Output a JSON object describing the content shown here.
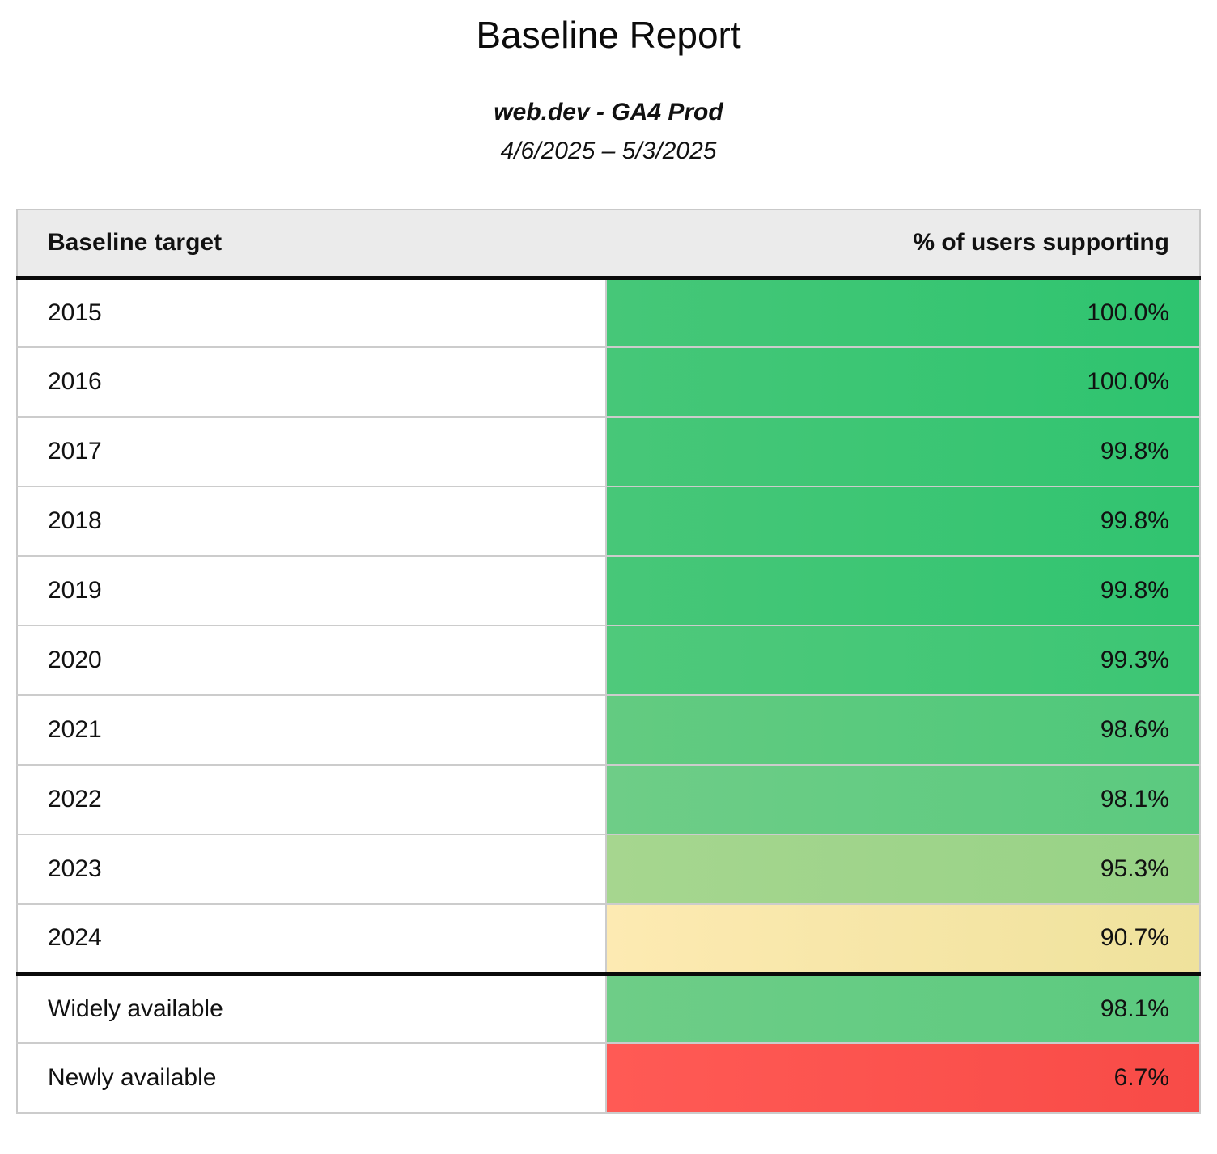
{
  "page": {
    "title": "Baseline Report",
    "subtitle": "web.dev - GA4 Prod",
    "date_range": "4/6/2025 – 5/3/2025"
  },
  "table": {
    "columns": [
      "Baseline target",
      "% of users supporting"
    ],
    "rows": [
      {
        "target": "2015",
        "value": "100.0%",
        "bg_left": "#46c778",
        "bg_right": "#2ec46f"
      },
      {
        "target": "2016",
        "value": "100.0%",
        "bg_left": "#46c778",
        "bg_right": "#2ec46f"
      },
      {
        "target": "2017",
        "value": "99.8%",
        "bg_left": "#47c778",
        "bg_right": "#31c470"
      },
      {
        "target": "2018",
        "value": "99.8%",
        "bg_left": "#47c778",
        "bg_right": "#31c470"
      },
      {
        "target": "2019",
        "value": "99.8%",
        "bg_left": "#47c778",
        "bg_right": "#31c470"
      },
      {
        "target": "2020",
        "value": "99.3%",
        "bg_left": "#4fc97b",
        "bg_right": "#3cc674"
      },
      {
        "target": "2021",
        "value": "98.6%",
        "bg_left": "#63cb81",
        "bg_right": "#4ec87a"
      },
      {
        "target": "2022",
        "value": "98.1%",
        "bg_left": "#6ecd87",
        "bg_right": "#5bca7f"
      },
      {
        "target": "2023",
        "value": "95.3%",
        "bg_left": "#a6d68f",
        "bg_right": "#97d286"
      },
      {
        "target": "2024",
        "value": "90.7%",
        "bg_left": "#fdeab2",
        "bg_right": "#efe29c"
      },
      {
        "target": "Widely available",
        "value": "98.1%",
        "bg_left": "#6ecd87",
        "bg_right": "#5bca7f"
      },
      {
        "target": "Newly available",
        "value": "6.7%",
        "bg_left": "#ff5a55",
        "bg_right": "#f84b47"
      }
    ]
  },
  "colors": {
    "header_background": "#ebebeb",
    "heavy_divider": "#0a0a0a",
    "row_border": "#cccccc",
    "good_green": "#2ec46f",
    "warn_yellow": "#f5e4a3",
    "bad_red": "#fb524d"
  },
  "chart_data": {
    "type": "table",
    "title": "Baseline Report",
    "subtitle": "web.dev - GA4 Prod",
    "date_range": "4/6/2025 – 5/3/2025",
    "columns": [
      "Baseline target",
      "% of users supporting"
    ],
    "categories": [
      "2015",
      "2016",
      "2017",
      "2018",
      "2019",
      "2020",
      "2021",
      "2022",
      "2023",
      "2024",
      "Widely available",
      "Newly available"
    ],
    "values": [
      100.0,
      100.0,
      99.8,
      99.8,
      99.8,
      99.3,
      98.6,
      98.1,
      95.3,
      90.7,
      98.1,
      6.7
    ],
    "unit": "%",
    "layout_hints": "two-column table; value cells shaded on green→yellow→red scale by percentage; thick black rule under header and above 'Widely available' group"
  }
}
